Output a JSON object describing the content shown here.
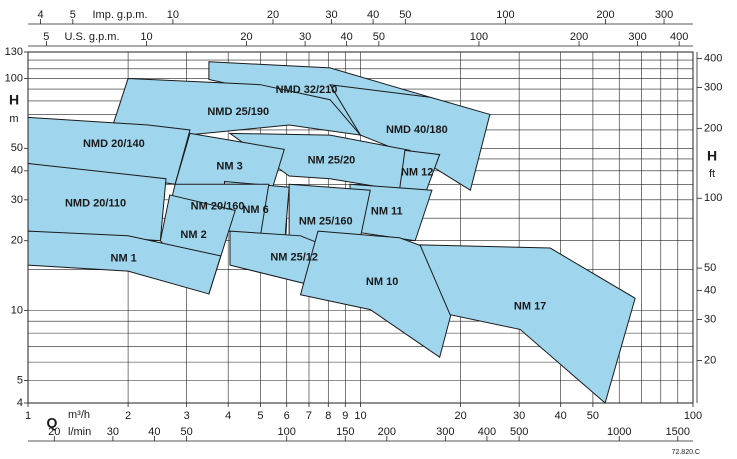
{
  "chart_data": {
    "type": "region",
    "log_scale": true,
    "color": "#9fd6ee",
    "xlim": [
      1,
      100
    ],
    "ylim": [
      4,
      130
    ],
    "xticks": [
      1,
      2,
      3,
      4,
      5,
      6,
      7,
      8,
      9,
      10,
      20,
      30,
      40,
      50,
      100
    ],
    "xgrid": [
      1,
      2,
      3,
      4,
      5,
      6,
      7,
      8,
      9,
      10,
      20,
      30,
      40,
      50,
      60,
      70,
      80,
      90,
      100
    ],
    "yticks": [
      4,
      5,
      10,
      20,
      30,
      40,
      50,
      100,
      130
    ],
    "ygrid": [
      5,
      6,
      7,
      8,
      9,
      10,
      15,
      20,
      25,
      30,
      35,
      40,
      45,
      50,
      60,
      70,
      80,
      90,
      100,
      110,
      120
    ],
    "x_label": "Q",
    "x_unit": "m³/h",
    "y_label": "H",
    "y_unit": "m",
    "y2_label": "H",
    "y2_unit": "ft",
    "y2lim": [
      13.12,
      426.5
    ],
    "y2ticks": [
      20,
      30,
      40,
      50,
      100,
      200,
      300,
      400
    ],
    "l_min": {
      "label": "l/min",
      "lim": [
        16.67,
        1666.7
      ],
      "ticks": [
        20,
        30,
        40,
        50,
        100,
        150,
        200,
        300,
        400,
        500,
        1000,
        1500
      ]
    },
    "imp_gpm": {
      "label": "Imp. g.p.m.",
      "lim": [
        3.666,
        366.6
      ],
      "ticks": [
        4,
        5,
        10,
        20,
        30,
        40,
        50,
        100,
        200,
        300
      ]
    },
    "us_gpm": {
      "label": "U.S. g.p.m.",
      "lim": [
        4.403,
        440.3
      ],
      "ticks": [
        5,
        10,
        20,
        30,
        40,
        50,
        100,
        200,
        300,
        400
      ]
    },
    "code": "72.820.C",
    "regions": [
      {
        "name": "NMD 32/210",
        "q": [
          3.5,
          8.1,
          16.2,
          10,
          6.6,
          3.5
        ],
        "h": [
          118,
          111,
          83,
          57,
          81,
          99
        ]
      },
      {
        "name": "NMD 25/190",
        "q": [
          2,
          5,
          8.1,
          10,
          6.1,
          3,
          1.8
        ],
        "h": [
          100,
          94,
          81,
          57,
          63,
          57,
          63
        ]
      },
      {
        "name": "NMD 40/180",
        "q": [
          8.1,
          16.2,
          24.5,
          21.4,
          15.1,
          10
        ],
        "h": [
          94,
          83,
          70,
          33,
          45,
          57
        ]
      },
      {
        "name": "NMD 20/140",
        "q": [
          1,
          2.3,
          3.07,
          2.77,
          1
        ],
        "h": [
          68,
          63,
          60,
          35,
          43
        ]
      },
      {
        "name": "NM 25/20",
        "q": [
          4.05,
          8.1,
          14.1,
          13.1,
          8.1,
          6.1
        ],
        "h": [
          58,
          57,
          49,
          33,
          37,
          38
        ]
      },
      {
        "name": "NM 12",
        "q": [
          13.6,
          17.3,
          15.6,
          13.1
        ],
        "h": [
          49,
          47,
          31.5,
          33
        ]
      },
      {
        "name": "NM 3",
        "q": [
          3.07,
          5.9,
          5.3,
          2.77
        ],
        "h": [
          58,
          49.5,
          30,
          35
        ]
      },
      {
        "name": "NM 11",
        "q": [
          9.3,
          16.4,
          14.6,
          9.3
        ],
        "h": [
          35,
          33,
          20,
          22
        ]
      },
      {
        "name": "NM 25/160",
        "q": [
          6.1,
          10.7,
          9.6,
          6.1
        ],
        "h": [
          35,
          33,
          15.7,
          19
        ]
      },
      {
        "name": "NM 6",
        "q": [
          3.9,
          6.1,
          5.9,
          3.9
        ],
        "h": [
          36,
          34,
          19,
          23
        ]
      },
      {
        "name": "NM 20/160",
        "q": [
          2.77,
          5.3,
          5,
          2.6
        ],
        "h": [
          35,
          35,
          21,
          24
        ]
      },
      {
        "name": "NMD 20/110",
        "q": [
          1,
          2.6,
          2.5,
          1
        ],
        "h": [
          43,
          37,
          20,
          22
        ]
      },
      {
        "name": "NM 2",
        "q": [
          2.67,
          4.2,
          3.5,
          2.5
        ],
        "h": [
          31.5,
          27,
          11.8,
          20
        ]
      },
      {
        "name": "NM 25/12",
        "q": [
          4.05,
          6.6,
          10,
          9.3,
          4.05
        ],
        "h": [
          22,
          21,
          16.5,
          11.7,
          15.7
        ]
      },
      {
        "name": "NM 10",
        "q": [
          7.45,
          13.1,
          20.6,
          17.3,
          10.7,
          6.6
        ],
        "h": [
          22,
          20.6,
          16.2,
          6.3,
          10.1,
          11.7
        ]
      },
      {
        "name": "NM 17",
        "q": [
          15.1,
          37.2,
          67,
          54.4,
          30.2,
          18.6
        ],
        "h": [
          19.2,
          18.6,
          11.3,
          4,
          8.3,
          9.6
        ]
      },
      {
        "name": "NM 1",
        "q": [
          1,
          2,
          3.8,
          3.5,
          2,
          1
        ],
        "h": [
          22,
          21,
          17.2,
          11.8,
          14.8,
          15.7
        ]
      }
    ]
  }
}
